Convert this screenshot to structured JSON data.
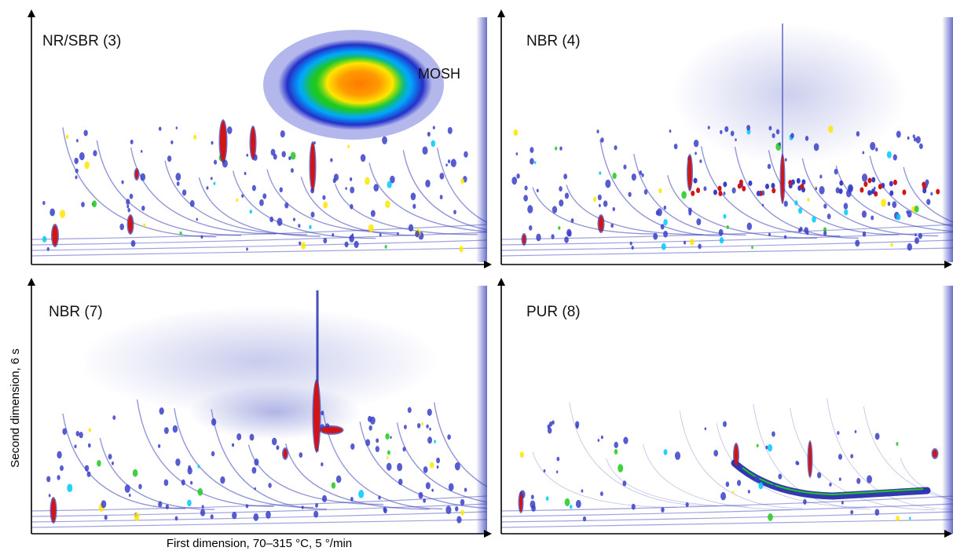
{
  "chart_data": {
    "type": "heatmap",
    "xlabel": "First dimension, 70–315 °C, 5 °/min",
    "ylabel": "Second dimension, 6 s",
    "grid": false,
    "legend": "none",
    "colormap": [
      "#ffffff",
      "#3a3fc8",
      "#00c8ff",
      "#1ec81e",
      "#ffe600",
      "#ff8c00",
      "#d21414"
    ],
    "panels": [
      {
        "id": "p1",
        "label": "NR/SBR (3)",
        "annotations": [
          {
            "text": "MOSH"
          }
        ]
      },
      {
        "id": "p2",
        "label": "NBR (4)",
        "annotations": []
      },
      {
        "id": "p3",
        "label": "NBR (7)",
        "annotations": []
      },
      {
        "id": "p4",
        "label": "PUR (8)",
        "annotations": []
      }
    ]
  }
}
